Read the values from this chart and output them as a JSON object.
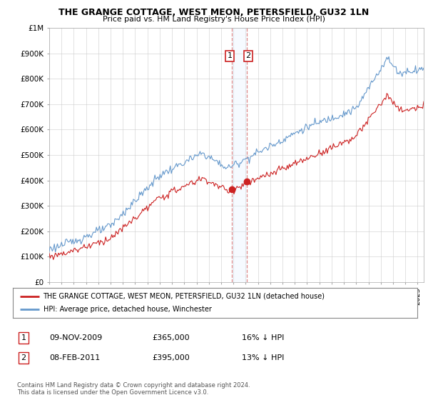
{
  "title": "THE GRANGE COTTAGE, WEST MEON, PETERSFIELD, GU32 1LN",
  "subtitle": "Price paid vs. HM Land Registry's House Price Index (HPI)",
  "ylabel_ticks": [
    "£0",
    "£100K",
    "£200K",
    "£300K",
    "£400K",
    "£500K",
    "£600K",
    "£700K",
    "£800K",
    "£900K",
    "£1M"
  ],
  "ytick_values": [
    0,
    100000,
    200000,
    300000,
    400000,
    500000,
    600000,
    700000,
    800000,
    900000,
    1000000
  ],
  "ylim": [
    0,
    1000000
  ],
  "xlim_start": 1995.0,
  "xlim_end": 2025.5,
  "transaction1_date": 2009.86,
  "transaction1_price": 365000,
  "transaction1_label": "1",
  "transaction2_date": 2011.1,
  "transaction2_price": 395000,
  "transaction2_label": "2",
  "hpi_color": "#6699cc",
  "property_color": "#cc2222",
  "vline_color": "#dd8888",
  "span_color": "#ddeeff",
  "annotation_border_color": "#cc2222",
  "annotation_fill_color": "#ffffff",
  "legend_label_property": "THE GRANGE COTTAGE, WEST MEON, PETERSFIELD, GU32 1LN (detached house)",
  "legend_label_hpi": "HPI: Average price, detached house, Winchester",
  "note1_label": "1",
  "note1_date": "09-NOV-2009",
  "note1_price": "£365,000",
  "note1_hpi": "16% ↓ HPI",
  "note2_label": "2",
  "note2_date": "08-FEB-2011",
  "note2_price": "£395,000",
  "note2_hpi": "13% ↓ HPI",
  "footer": "Contains HM Land Registry data © Crown copyright and database right 2024.\nThis data is licensed under the Open Government Licence v3.0.",
  "background_color": "#ffffff"
}
